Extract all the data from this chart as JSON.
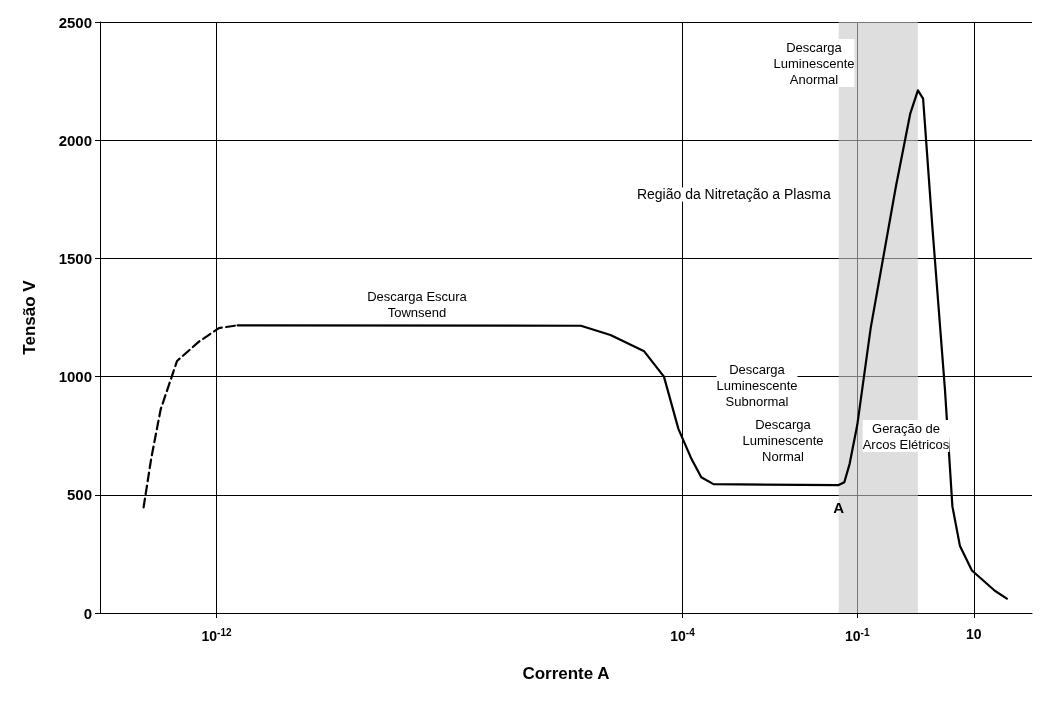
{
  "chart_data": {
    "type": "line",
    "xlabel": "Corrente A",
    "ylabel": "Tensão V",
    "log": "x",
    "xlim": [
      1e-14,
      100
    ],
    "xticks": [
      {
        "value": 1e-12,
        "label": "10$^{-12}$"
      },
      {
        "value": 0.0001,
        "label": "10$^{-4}$"
      },
      {
        "value": 0.1,
        "label": "10$^{-1}$"
      },
      10
    ],
    "ylim": [
      0,
      2500
    ],
    "yticks": [
      0,
      500,
      1000,
      1500,
      2000,
      2500
    ],
    "grid": true,
    "marker": "none",
    "series": [
      {
        "color": "#000000",
        "line_style": "dashed",
        "x": [
          5.6e-14,
          7.6e-14,
          1.1e-13,
          2.1e-13,
          5e-13,
          1.1e-12,
          2.3e-12
        ],
        "values": [
          447,
          656,
          861,
          1066,
          1148,
          1205,
          1217
        ]
      },
      {
        "color": "#000000",
        "line_style": "solid",
        "x": [
          2.3e-12,
          1.8e-06,
          5.8e-06,
          2.2e-05,
          4.8e-05,
          8.5e-05,
          0.00014,
          0.00021,
          0.00034,
          0.048,
          0.06,
          0.074,
          0.1,
          0.17,
          0.46,
          0.81,
          1.1,
          1.35,
          1.95,
          3.2,
          4.3,
          5.8,
          9.3,
          23,
          37
        ],
        "values": [
          1217,
          1215,
          1176,
          1107,
          1000,
          779,
          656,
          574,
          545,
          541,
          553,
          631,
          795,
          1205,
          1803,
          2111,
          2211,
          2176,
          1631,
          947,
          451,
          283,
          180,
          94,
          61
        ]
      }
    ],
    "bands": [
      {
        "axis": "x",
        "from": 0.048,
        "to": 1.1,
        "label": "Região da Nitretação a Plasma",
        "color": "#c8c8c8"
      }
    ],
    "annotations": [
      "Descarga Escura\nTownsend",
      "Descarga\nLuminescente\nSubnormal",
      "Descarga\nLuminescente\nNormal",
      "Descarga\nLuminescente\nAnormal",
      "Geração de\nArcos Elétricos",
      {
        "text": "A",
        "x": 0.048,
        "y": 541
      }
    ]
  }
}
